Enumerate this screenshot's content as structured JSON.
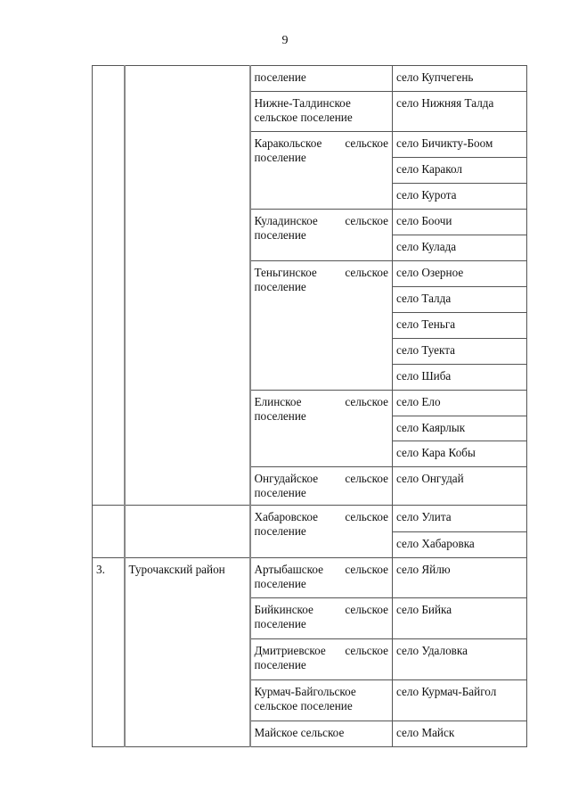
{
  "page_number": "9",
  "blocks": [
    {
      "num": "",
      "district": "",
      "settlements": [
        {
          "name": "поселение",
          "villages": [
            "село Купчегень"
          ]
        },
        {
          "name": "Нижне-Талдинское сельское поселение",
          "villages": [
            "село Нижняя Талда"
          ]
        },
        {
          "name": "Каракольское сельское поселение",
          "villages": [
            "село Бичикту-Боом",
            "село Каракол",
            "село Курота"
          ]
        },
        {
          "name": "Куладинское сельское поселение",
          "villages": [
            "село Боочи",
            "село Кулада"
          ]
        },
        {
          "name": "Теньгинское сельское поселение",
          "villages": [
            "село Озерное",
            "село Талда",
            "село Теньга",
            "село Туекта",
            "село Шиба"
          ]
        },
        {
          "name": "Елинское сельское поселение",
          "villages": [
            "село Ело",
            "село Каярлык",
            "село Кара Кобы"
          ]
        },
        {
          "name": "Онгудайское сельское поселение",
          "villages": [
            "село Онгудай"
          ]
        }
      ]
    },
    {
      "num": "",
      "district": "",
      "settlements": [
        {
          "name": "Хабаровское сельское поселение",
          "villages": [
            "село Улита",
            "село Хабаровка"
          ]
        }
      ]
    },
    {
      "num": "3.",
      "district": "Турочакский район",
      "settlements": [
        {
          "name": "Артыбашское сельское поселение",
          "villages": [
            "село Яйлю"
          ]
        },
        {
          "name": "Бийкинское сельское поселение",
          "villages": [
            "село Бийка"
          ]
        },
        {
          "name": "Дмитриевское сельское поселение",
          "villages": [
            "село Удаловка"
          ]
        },
        {
          "name": "Курмач-Байгольское сельское поселение",
          "villages": [
            "село Курмач-Байгол"
          ]
        },
        {
          "name": "Майское сельское",
          "villages": [
            "село Майск"
          ]
        }
      ]
    }
  ]
}
